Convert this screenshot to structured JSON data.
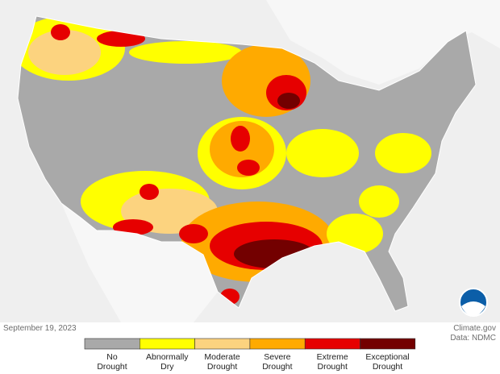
{
  "caption": {
    "date": "September 19, 2023",
    "source": "Climate.gov",
    "data_credit": "Data: NDMC"
  },
  "legend": {
    "items": [
      {
        "lines": [
          "No",
          "Drought"
        ],
        "color": "#a9a9a9"
      },
      {
        "lines": [
          "Abnormally",
          "Dry"
        ],
        "color": "#ffff00"
      },
      {
        "lines": [
          "Moderate",
          "Drought"
        ],
        "color": "#fcd37f"
      },
      {
        "lines": [
          "Severe",
          "Drought"
        ],
        "color": "#ffaa00"
      },
      {
        "lines": [
          "Extreme",
          "Drought"
        ],
        "color": "#e60000"
      },
      {
        "lines": [
          "Exceptional",
          "Drought"
        ],
        "color": "#730000"
      }
    ]
  }
}
